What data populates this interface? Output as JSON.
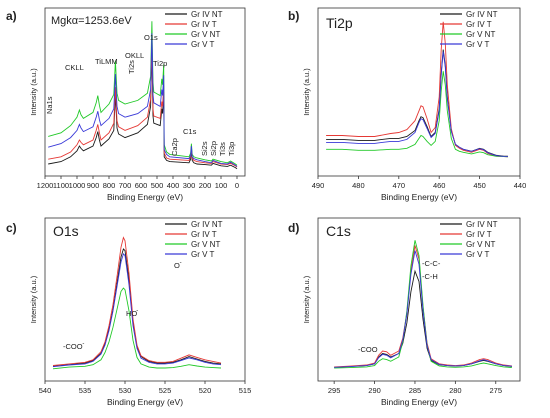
{
  "figure": {
    "panel_letters": [
      "a)",
      "b)",
      "c)",
      "d)"
    ]
  },
  "legend_labels": [
    "Gr IV NT",
    "Gr IV T",
    "Gr V NT",
    "Gr V T"
  ],
  "series_colors": [
    "#1a1a1a",
    "#e53935",
    "#22c928",
    "#3a3ad8"
  ],
  "chart_data": [
    {
      "type": "line",
      "panel": "a)",
      "title": "Mgkα=1253.6eV",
      "xlabel": "Binding Energy (eV)",
      "ylabel": "Intensity (a.u.)",
      "xlim": [
        1200,
        -50
      ],
      "x_reversed": true,
      "xticks": [
        1200,
        1100,
        1000,
        900,
        800,
        700,
        600,
        500,
        400,
        300,
        200,
        100,
        0
      ],
      "x": [
        1180,
        1100,
        1040,
        1000,
        985,
        975,
        960,
        900,
        880,
        870,
        860,
        850,
        800,
        770,
        760,
        750,
        740,
        700,
        620,
        560,
        540,
        532,
        525,
        520,
        480,
        470,
        465,
        458,
        455,
        440,
        420,
        300,
        290,
        285,
        280,
        270,
        250,
        200,
        160,
        150,
        100,
        60,
        40,
        10,
        0
      ],
      "series": [
        {
          "name": "Gr IV NT",
          "values": [
            1.0,
            1.2,
            1.6,
            2.1,
            2.5,
            2.3,
            2.1,
            2.5,
            3.2,
            3.7,
            3.0,
            2.5,
            3.1,
            3.8,
            6.8,
            4.0,
            3.5,
            3.2,
            3.6,
            4.3,
            5.8,
            10.5,
            5.0,
            4.4,
            4.2,
            5.6,
            5.2,
            7.0,
            1.6,
            1.3,
            1.2,
            1.1,
            1.4,
            2.1,
            1.3,
            1.1,
            1.0,
            0.95,
            0.9,
            1.05,
            0.85,
            0.8,
            0.9,
            0.7,
            0.6
          ]
        },
        {
          "name": "Gr IV T",
          "values": [
            1.4,
            1.6,
            2.0,
            2.6,
            3.0,
            2.8,
            2.6,
            3.0,
            3.8,
            4.3,
            3.6,
            3.0,
            3.6,
            4.4,
            7.4,
            4.6,
            4.1,
            3.8,
            4.2,
            4.9,
            6.4,
            11.0,
            5.6,
            5.0,
            4.8,
            6.2,
            5.8,
            7.6,
            1.9,
            1.5,
            1.4,
            1.3,
            1.6,
            2.4,
            1.5,
            1.3,
            1.2,
            1.1,
            1.05,
            1.2,
            1.0,
            0.95,
            1.05,
            0.85,
            0.75
          ]
        },
        {
          "name": "Gr V NT",
          "values": [
            3.3,
            3.6,
            4.2,
            4.9,
            5.5,
            5.1,
            4.8,
            5.3,
            6.1,
            6.7,
            5.9,
            5.3,
            6.0,
            6.8,
            9.6,
            6.9,
            6.3,
            6.0,
            6.3,
            6.9,
            8.3,
            12.9,
            7.8,
            7.0,
            6.7,
            8.1,
            7.6,
            9.3,
            2.6,
            2.0,
            1.8,
            1.6,
            1.9,
            2.7,
            1.8,
            1.6,
            1.5,
            1.35,
            1.25,
            1.4,
            1.2,
            1.1,
            1.25,
            1.0,
            0.9
          ]
        },
        {
          "name": "Gr V T",
          "values": [
            2.4,
            2.7,
            3.2,
            3.8,
            4.3,
            4.0,
            3.7,
            4.1,
            4.9,
            5.4,
            4.7,
            4.2,
            4.8,
            5.6,
            8.5,
            5.8,
            5.2,
            4.9,
            5.2,
            5.8,
            7.2,
            11.9,
            6.8,
            6.1,
            5.8,
            7.2,
            6.7,
            8.4,
            2.2,
            1.8,
            1.6,
            1.45,
            1.7,
            2.5,
            1.6,
            1.45,
            1.35,
            1.2,
            1.1,
            1.3,
            1.05,
            1.0,
            1.15,
            0.9,
            0.8
          ]
        }
      ],
      "ylim": [
        0,
        14
      ],
      "annotations": [
        "CKLL",
        "TiLMM",
        "OKLL",
        "O1s",
        "Ti2s",
        "Ti2p",
        "Na1s",
        "C1s",
        "Ca2p",
        "Si2s",
        "Si2p",
        "Ti3s",
        "Ti3p"
      ],
      "legend": "top-right"
    },
    {
      "type": "line",
      "panel": "b)",
      "title": "Ti2p",
      "xlabel": "Binding Energy (eV)",
      "ylabel": "Intensity (a.u.)",
      "xlim": [
        490,
        440
      ],
      "x_reversed": true,
      "xticks": [
        490,
        480,
        470,
        460,
        450,
        440
      ],
      "x": [
        488,
        484,
        480,
        476,
        472,
        470,
        468,
        466,
        465,
        464.5,
        464,
        463,
        462,
        461,
        460,
        459.5,
        459,
        458.5,
        458,
        457,
        456,
        455,
        454,
        452,
        450,
        449,
        448,
        446,
        444,
        443
      ],
      "series": [
        {
          "name": "Gr IV NT",
          "values": [
            1.85,
            1.85,
            1.8,
            1.8,
            1.9,
            1.9,
            2.0,
            2.3,
            2.8,
            3.0,
            2.95,
            2.5,
            2.0,
            2.2,
            3.4,
            5.2,
            6.4,
            5.6,
            4.0,
            2.3,
            1.6,
            1.45,
            1.35,
            1.25,
            1.4,
            1.35,
            1.2,
            1.05,
            1.0,
            1.0
          ]
        },
        {
          "name": "Gr IV T",
          "values": [
            2.05,
            2.05,
            2.0,
            2.0,
            2.15,
            2.2,
            2.35,
            2.8,
            3.3,
            3.55,
            3.5,
            2.9,
            2.2,
            2.45,
            4.0,
            6.4,
            7.8,
            6.7,
            4.6,
            2.4,
            1.55,
            1.4,
            1.3,
            1.2,
            1.35,
            1.3,
            1.15,
            1.0,
            0.98,
            0.97
          ]
        },
        {
          "name": "Gr V NT",
          "values": [
            1.35,
            1.35,
            1.3,
            1.3,
            1.35,
            1.35,
            1.4,
            1.6,
            1.9,
            2.05,
            2.0,
            1.75,
            1.55,
            1.75,
            2.8,
            4.3,
            5.3,
            4.6,
            3.3,
            1.9,
            1.35,
            1.25,
            1.2,
            1.12,
            1.22,
            1.18,
            1.08,
            1.0,
            0.98,
            0.97
          ]
        },
        {
          "name": "Gr V T",
          "values": [
            1.7,
            1.7,
            1.65,
            1.65,
            1.75,
            1.75,
            1.85,
            2.2,
            2.7,
            2.9,
            2.85,
            2.4,
            1.95,
            2.15,
            3.3,
            5.1,
            6.3,
            5.5,
            3.9,
            2.25,
            1.6,
            1.45,
            1.35,
            1.25,
            1.38,
            1.33,
            1.18,
            1.03,
            0.99,
            0.98
          ]
        }
      ],
      "ylim": [
        0,
        8.5
      ],
      "legend": "top-right"
    },
    {
      "type": "line",
      "panel": "c)",
      "title": "O1s",
      "xlabel": "Binding Energy (eV)",
      "ylabel": "Intensity (a.u.)",
      "xlim": [
        540,
        515
      ],
      "x_reversed": true,
      "xticks": [
        540,
        535,
        530,
        525,
        520,
        515
      ],
      "x": [
        539,
        537,
        535,
        534,
        533,
        532.5,
        532,
        531.5,
        531,
        530.5,
        530.2,
        530,
        529.5,
        529,
        528.5,
        528,
        527,
        526,
        525,
        524,
        523,
        522,
        521,
        520,
        519,
        518
      ],
      "series": [
        {
          "name": "Gr IV NT",
          "values": [
            0.9,
            1.0,
            1.1,
            1.25,
            1.7,
            2.3,
            3.2,
            4.4,
            6.0,
            7.6,
            8.1,
            8.0,
            6.2,
            3.6,
            2.1,
            1.5,
            1.2,
            1.1,
            1.1,
            1.15,
            1.3,
            1.5,
            1.35,
            1.2,
            1.1,
            1.05
          ]
        },
        {
          "name": "Gr IV T",
          "values": [
            0.95,
            1.05,
            1.15,
            1.3,
            1.8,
            2.4,
            3.4,
            4.7,
            6.4,
            8.2,
            8.8,
            8.6,
            6.6,
            3.8,
            2.2,
            1.55,
            1.25,
            1.15,
            1.15,
            1.2,
            1.4,
            1.6,
            1.45,
            1.3,
            1.2,
            1.1
          ]
        },
        {
          "name": "Gr V NT",
          "values": [
            0.75,
            0.85,
            0.9,
            1.0,
            1.3,
            1.75,
            2.4,
            3.3,
            4.4,
            5.5,
            5.7,
            5.6,
            4.3,
            2.5,
            1.45,
            1.05,
            0.85,
            0.8,
            0.8,
            0.82,
            0.9,
            1.0,
            0.92,
            0.85,
            0.82,
            0.8
          ]
        },
        {
          "name": "Gr V T",
          "values": [
            0.88,
            0.98,
            1.05,
            1.2,
            1.65,
            2.2,
            3.1,
            4.3,
            5.8,
            7.3,
            7.8,
            7.7,
            5.9,
            3.4,
            2.0,
            1.4,
            1.15,
            1.05,
            1.05,
            1.1,
            1.25,
            1.42,
            1.3,
            1.15,
            1.05,
            1.0
          ]
        }
      ],
      "ylim": [
        0,
        10
      ],
      "annotations": [
        "O",
        "HO",
        "-COO"
      ],
      "legend": "top-right"
    },
    {
      "type": "line",
      "panel": "d)",
      "title": "C1s",
      "xlabel": "Binding Energy (eV)",
      "ylabel": "Intensity (a.u.)",
      "xlim": [
        297,
        272
      ],
      "x_reversed": true,
      "xticks": [
        295,
        290,
        285,
        280,
        275
      ],
      "x": [
        295,
        293,
        291,
        290,
        289.5,
        289,
        288.5,
        288,
        287,
        286.5,
        286,
        285.5,
        285,
        284.5,
        284,
        283.5,
        283,
        282,
        281,
        280,
        279,
        278,
        277,
        276.5,
        276,
        275,
        274,
        273
      ],
      "series": [
        {
          "name": "Gr IV NT",
          "values": [
            0.8,
            0.85,
            0.9,
            1.0,
            1.4,
            1.6,
            1.55,
            1.4,
            1.6,
            2.2,
            3.4,
            5.2,
            6.4,
            5.8,
            3.6,
            1.9,
            1.2,
            0.95,
            0.9,
            0.88,
            0.9,
            1.0,
            1.15,
            1.2,
            1.15,
            1.0,
            0.9,
            0.85
          ]
        },
        {
          "name": "Gr IV T",
          "values": [
            0.82,
            0.87,
            0.93,
            1.05,
            1.5,
            1.75,
            1.7,
            1.5,
            1.75,
            2.5,
            4.0,
            6.4,
            7.9,
            7.1,
            4.3,
            2.2,
            1.3,
            1.0,
            0.93,
            0.9,
            0.93,
            1.05,
            1.25,
            1.3,
            1.25,
            1.05,
            0.93,
            0.88
          ]
        },
        {
          "name": "Gr V NT",
          "values": [
            0.75,
            0.78,
            0.82,
            0.9,
            1.15,
            1.3,
            1.25,
            1.15,
            1.4,
            2.3,
            4.1,
            6.7,
            8.2,
            7.3,
            4.4,
            2.1,
            1.15,
            0.88,
            0.82,
            0.8,
            0.82,
            0.88,
            1.0,
            1.05,
            1.0,
            0.9,
            0.82,
            0.78
          ]
        },
        {
          "name": "Gr V T",
          "values": [
            0.8,
            0.84,
            0.9,
            1.0,
            1.35,
            1.55,
            1.5,
            1.35,
            1.6,
            2.4,
            3.9,
            6.2,
            7.6,
            6.8,
            4.1,
            2.05,
            1.25,
            0.97,
            0.9,
            0.88,
            0.9,
            1.0,
            1.18,
            1.24,
            1.18,
            1.0,
            0.9,
            0.86
          ]
        }
      ],
      "ylim": [
        0,
        9.5
      ],
      "annotations": [
        "-C-C-",
        "-C-H",
        "-COO"
      ],
      "legend": "top-right"
    }
  ]
}
